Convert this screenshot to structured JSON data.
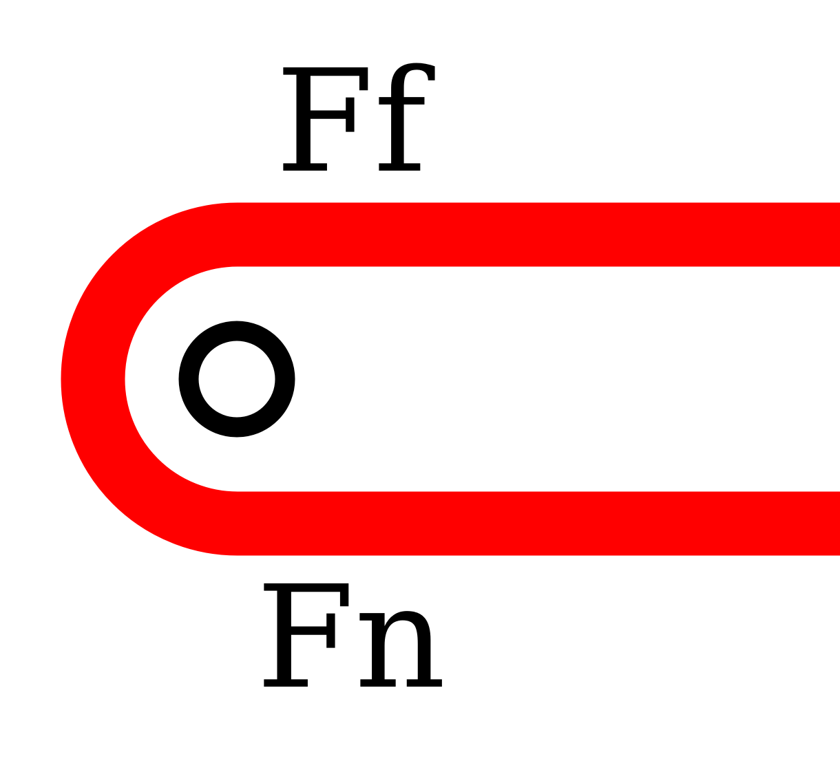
{
  "diagram": {
    "labels": {
      "top": "Ff",
      "bottom": "Fn"
    },
    "colors": {
      "belt": "#ff0000",
      "pulley": "#000000",
      "text": "#000000",
      "background": "#ffffff"
    }
  }
}
